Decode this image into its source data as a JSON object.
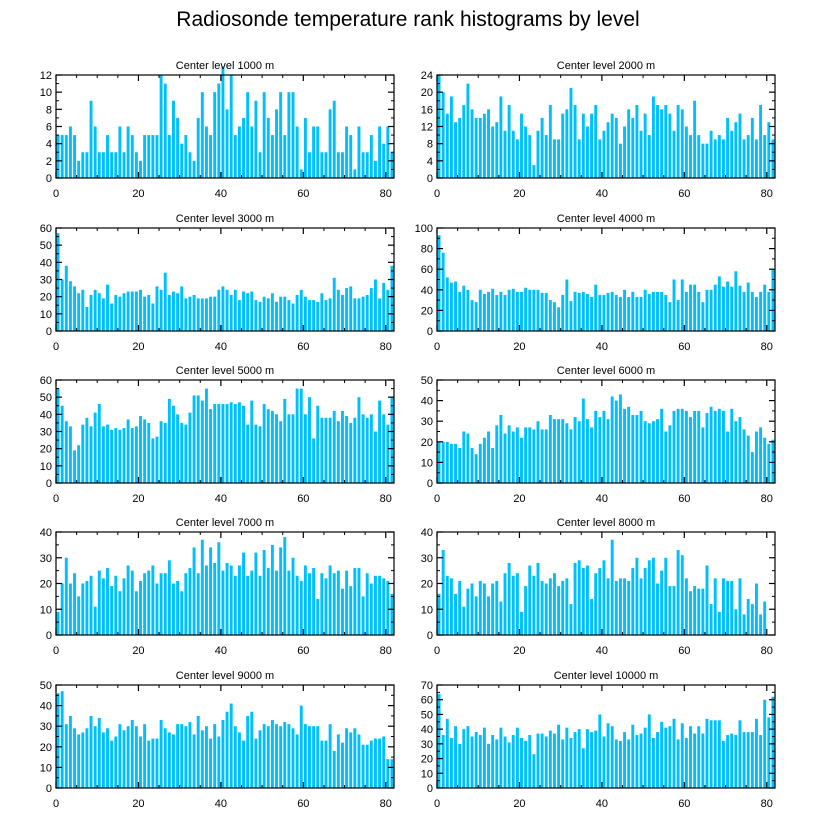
{
  "figure": {
    "title": "Radiosonde temperature rank histograms by level",
    "bar_color": "#00bfff"
  },
  "chart_data": [
    {
      "type": "bar",
      "title": "Center level 1000 m",
      "xlim": [
        0,
        82
      ],
      "ylim": [
        0,
        12
      ],
      "xticks": [
        0,
        20,
        40,
        60,
        80
      ],
      "yticks": [
        0,
        2,
        4,
        6,
        8,
        10,
        12
      ],
      "values": [
        5,
        5,
        5,
        6,
        5,
        2,
        3,
        3,
        9,
        6,
        3,
        3,
        5,
        3,
        3,
        6,
        3,
        6,
        5,
        3,
        2,
        5,
        5,
        5,
        5,
        12,
        11,
        5,
        9,
        7,
        4,
        5,
        3,
        2,
        7,
        10,
        6,
        5,
        10,
        11,
        13,
        8,
        12,
        5,
        6,
        7,
        10,
        6,
        9,
        3,
        10,
        7,
        5,
        8,
        10,
        5,
        10,
        10,
        6,
        1,
        7,
        3,
        6,
        6,
        3,
        3,
        8,
        9,
        3,
        3,
        6,
        5,
        1,
        6,
        3,
        3,
        5,
        2,
        6,
        4,
        6,
        3
      ]
    },
    {
      "type": "bar",
      "title": "Center level 2000 m",
      "xlim": [
        0,
        82
      ],
      "ylim": [
        0,
        24
      ],
      "xticks": [
        0,
        20,
        40,
        60,
        80
      ],
      "yticks": [
        0,
        4,
        8,
        12,
        16,
        20,
        24
      ],
      "values": [
        24,
        20,
        15,
        19,
        13,
        14,
        17,
        22,
        16,
        14,
        14,
        15,
        16,
        12,
        13,
        19,
        11,
        17,
        11,
        9,
        15,
        12,
        10,
        3,
        11,
        14,
        10,
        17,
        9,
        9,
        15,
        16,
        21,
        17,
        9,
        15,
        12,
        15,
        17,
        9,
        11,
        13,
        15,
        14,
        8,
        12,
        16,
        14,
        17,
        11,
        15,
        10,
        19,
        17,
        16,
        17,
        15,
        11,
        17,
        16,
        12,
        10,
        18,
        10,
        8,
        8,
        11,
        9,
        10,
        9,
        14,
        11,
        13,
        15,
        9,
        10,
        14,
        9,
        17,
        10,
        13,
        9
      ]
    },
    {
      "type": "bar",
      "title": "Center level 3000 m",
      "xlim": [
        0,
        82
      ],
      "ylim": [
        0,
        60
      ],
      "xticks": [
        0,
        20,
        40,
        60,
        80
      ],
      "yticks": [
        0,
        10,
        20,
        30,
        40,
        50,
        60
      ],
      "values": [
        57,
        30,
        38,
        29,
        26,
        22,
        24,
        14,
        21,
        24,
        22,
        19,
        27,
        16,
        21,
        20,
        22,
        23,
        23,
        23,
        24,
        20,
        21,
        16,
        26,
        24,
        34,
        21,
        23,
        22,
        26,
        19,
        20,
        21,
        19,
        19,
        19,
        20,
        20,
        24,
        26,
        24,
        21,
        24,
        18,
        23,
        22,
        23,
        18,
        17,
        20,
        19,
        22,
        17,
        20,
        20,
        18,
        16,
        21,
        24,
        20,
        18,
        18,
        17,
        22,
        18,
        19,
        31,
        24,
        21,
        25,
        26,
        19,
        19,
        20,
        21,
        25,
        30,
        19,
        28,
        24,
        38
      ]
    },
    {
      "type": "bar",
      "title": "Center level 4000 m",
      "xlim": [
        0,
        82
      ],
      "ylim": [
        0,
        100
      ],
      "xticks": [
        0,
        20,
        40,
        60,
        80
      ],
      "yticks": [
        0,
        20,
        40,
        60,
        80,
        100
      ],
      "values": [
        93,
        76,
        52,
        47,
        48,
        38,
        44,
        40,
        30,
        28,
        40,
        36,
        38,
        41,
        35,
        38,
        35,
        40,
        41,
        38,
        38,
        42,
        40,
        40,
        40,
        37,
        37,
        30,
        28,
        23,
        35,
        50,
        29,
        38,
        37,
        38,
        36,
        33,
        45,
        35,
        35,
        37,
        38,
        35,
        33,
        40,
        33,
        38,
        33,
        33,
        40,
        36,
        38,
        38,
        38,
        35,
        28,
        50,
        30,
        50,
        38,
        45,
        45,
        38,
        28,
        40,
        40,
        45,
        53,
        43,
        48,
        43,
        58,
        44,
        38,
        47,
        38,
        33,
        38,
        45,
        38,
        60
      ]
    },
    {
      "type": "bar",
      "title": "Center level 5000 m",
      "xlim": [
        0,
        82
      ],
      "ylim": [
        0,
        60
      ],
      "xticks": [
        0,
        20,
        40,
        60,
        80
      ],
      "yticks": [
        0,
        10,
        20,
        30,
        40,
        50,
        60
      ],
      "values": [
        55,
        45,
        36,
        33,
        19,
        22,
        34,
        38,
        33,
        41,
        46,
        33,
        34,
        31,
        32,
        31,
        32,
        37,
        32,
        33,
        39,
        37,
        35,
        26,
        27,
        36,
        35,
        49,
        45,
        40,
        35,
        34,
        41,
        51,
        51,
        48,
        55,
        43,
        46,
        46,
        46,
        46,
        47,
        46,
        47,
        45,
        34,
        48,
        34,
        33,
        46,
        43,
        42,
        40,
        36,
        49,
        40,
        40,
        55,
        55,
        40,
        50,
        26,
        45,
        38,
        38,
        38,
        42,
        36,
        42,
        39,
        35,
        38,
        50,
        40,
        38,
        40,
        30,
        48,
        40,
        34,
        50
      ]
    },
    {
      "type": "bar",
      "title": "Center level 6000 m",
      "xlim": [
        0,
        82
      ],
      "ylim": [
        0,
        50
      ],
      "xticks": [
        0,
        20,
        40,
        60,
        80
      ],
      "yticks": [
        0,
        10,
        20,
        30,
        40,
        50
      ],
      "values": [
        20,
        20,
        20,
        19,
        19,
        17,
        25,
        24,
        17,
        14,
        19,
        22,
        25,
        17,
        28,
        33,
        24,
        28,
        25,
        27,
        22,
        27,
        27,
        26,
        30,
        26,
        26,
        33,
        31,
        31,
        31,
        29,
        26,
        32,
        30,
        41,
        31,
        27,
        35,
        32,
        35,
        31,
        42,
        40,
        43,
        36,
        37,
        33,
        33,
        35,
        30,
        29,
        30,
        31,
        36,
        25,
        28,
        35,
        36,
        36,
        35,
        32,
        35,
        35,
        27,
        34,
        37,
        35,
        36,
        35,
        25,
        36,
        30,
        32,
        26,
        23,
        15,
        25,
        27,
        22,
        19,
        21
      ]
    },
    {
      "type": "bar",
      "title": "Center level 7000 m",
      "xlim": [
        0,
        82
      ],
      "ylim": [
        0,
        40
      ],
      "xticks": [
        0,
        20,
        40,
        60,
        80
      ],
      "yticks": [
        0,
        10,
        20,
        30,
        40
      ],
      "values": [
        9,
        20,
        30,
        20,
        24,
        15,
        20,
        21,
        23,
        11,
        25,
        22,
        26,
        19,
        23,
        17,
        22,
        27,
        25,
        17,
        21,
        24,
        25,
        27,
        20,
        24,
        24,
        29,
        20,
        21,
        17,
        24,
        26,
        34,
        24,
        37,
        27,
        34,
        28,
        36,
        25,
        28,
        27,
        23,
        27,
        32,
        23,
        25,
        32,
        23,
        33,
        26,
        35,
        25,
        34,
        38,
        25,
        30,
        23,
        21,
        27,
        24,
        26,
        14,
        24,
        22,
        27,
        24,
        25,
        18,
        25,
        19,
        26,
        26,
        15,
        24,
        20,
        23,
        23,
        22,
        21,
        16
      ]
    },
    {
      "type": "bar",
      "title": "Center level 8000 m",
      "xlim": [
        0,
        82
      ],
      "ylim": [
        0,
        40
      ],
      "xticks": [
        0,
        20,
        40,
        60,
        80
      ],
      "yticks": [
        0,
        10,
        20,
        30,
        40
      ],
      "values": [
        16,
        33,
        23,
        22,
        16,
        21,
        11,
        18,
        20,
        15,
        21,
        20,
        15,
        20,
        21,
        13,
        24,
        28,
        23,
        24,
        9,
        19,
        27,
        23,
        28,
        21,
        20,
        22,
        24,
        19,
        21,
        22,
        12,
        28,
        29,
        26,
        27,
        14,
        24,
        26,
        29,
        22,
        37,
        21,
        22,
        22,
        21,
        26,
        30,
        22,
        26,
        29,
        30,
        20,
        25,
        30,
        19,
        19,
        33,
        31,
        22,
        17,
        19,
        18,
        18,
        27,
        12,
        22,
        9,
        22,
        21,
        21,
        10,
        22,
        8,
        14,
        12,
        20,
        8,
        13
      ]
    },
    {
      "type": "bar",
      "title": "Center level 9000 m",
      "xlim": [
        0,
        82
      ],
      "ylim": [
        0,
        50
      ],
      "xticks": [
        0,
        20,
        40,
        60,
        80
      ],
      "yticks": [
        0,
        10,
        20,
        30,
        40,
        50
      ],
      "values": [
        46,
        47,
        31,
        35,
        29,
        26,
        27,
        29,
        35,
        30,
        34,
        27,
        29,
        23,
        25,
        31,
        28,
        30,
        33,
        30,
        25,
        31,
        23,
        24,
        24,
        33,
        29,
        27,
        26,
        31,
        31,
        30,
        32,
        26,
        35,
        28,
        30,
        24,
        31,
        25,
        33,
        37,
        41,
        30,
        27,
        23,
        35,
        37,
        24,
        28,
        31,
        30,
        33,
        31,
        30,
        32,
        31,
        29,
        26,
        40,
        31,
        30,
        30,
        30,
        23,
        23,
        31,
        18,
        26,
        22,
        29,
        27,
        29,
        26,
        21,
        21,
        23,
        24,
        24,
        25,
        14,
        14
      ]
    },
    {
      "type": "bar",
      "title": "Center level 10000 m",
      "xlim": [
        0,
        82
      ],
      "ylim": [
        0,
        70
      ],
      "xticks": [
        0,
        20,
        40,
        60,
        80
      ],
      "yticks": [
        0,
        10,
        20,
        30,
        40,
        50,
        60,
        70
      ],
      "values": [
        64,
        36,
        47,
        34,
        42,
        30,
        40,
        42,
        35,
        38,
        36,
        41,
        30,
        36,
        33,
        41,
        35,
        31,
        36,
        41,
        34,
        32,
        36,
        23,
        37,
        37,
        35,
        39,
        37,
        43,
        33,
        41,
        34,
        38,
        40,
        27,
        40,
        38,
        39,
        50,
        35,
        44,
        42,
        33,
        32,
        38,
        33,
        43,
        36,
        37,
        41,
        50,
        34,
        38,
        45,
        41,
        42,
        47,
        33,
        44,
        34,
        42,
        37,
        42,
        37,
        47,
        46,
        46,
        46,
        32,
        36,
        37,
        36,
        46,
        38,
        38,
        38,
        47,
        36,
        60,
        48,
        62
      ]
    }
  ]
}
